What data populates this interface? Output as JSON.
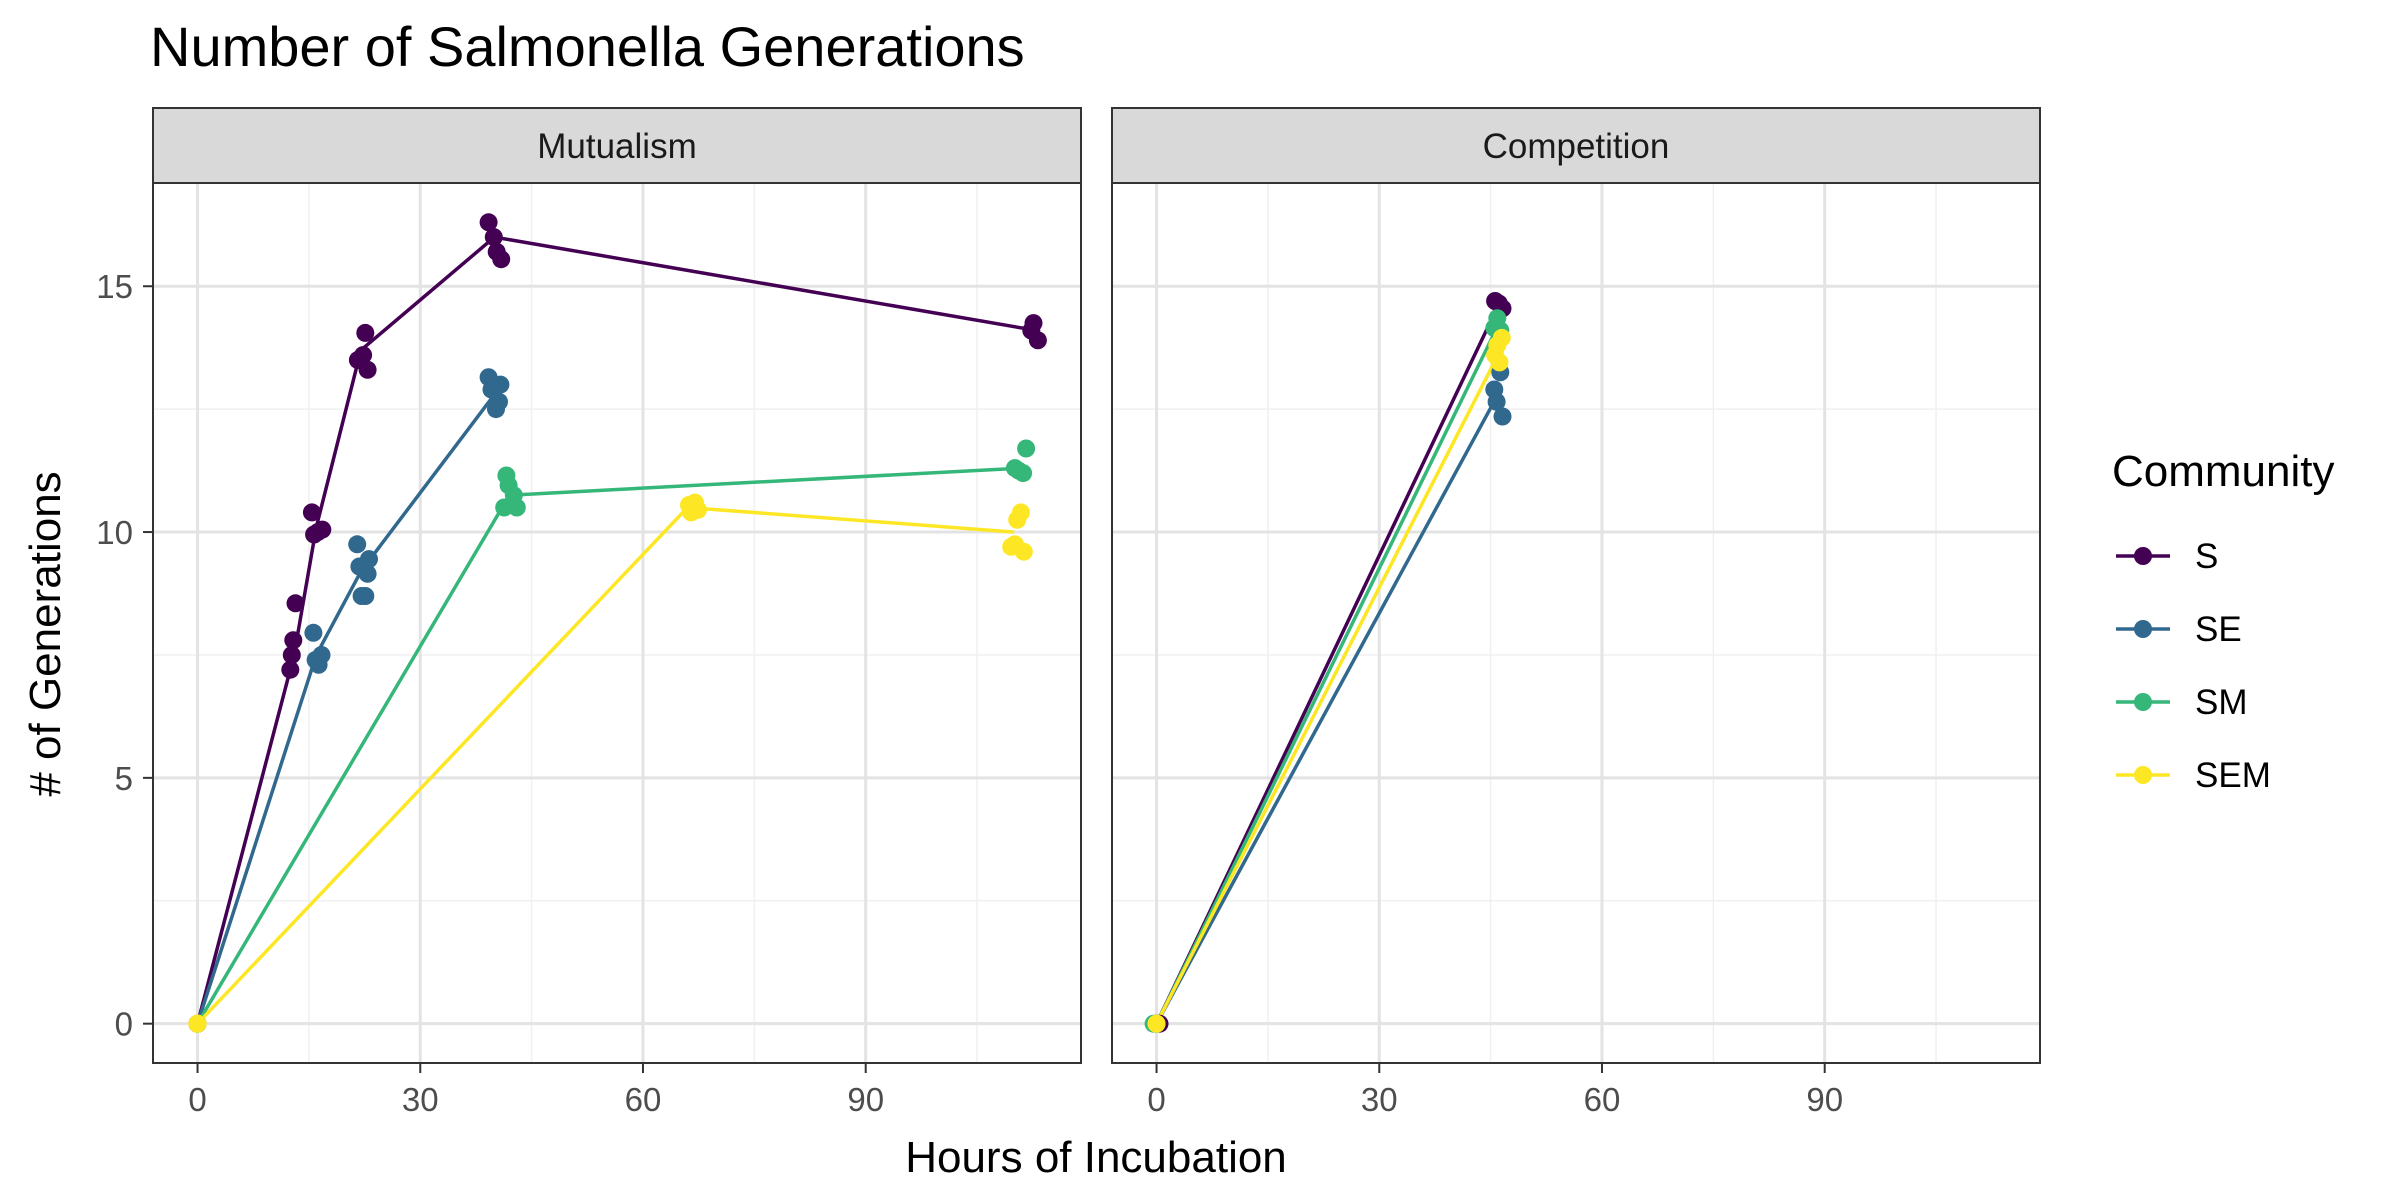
{
  "chart_data": {
    "type": "line",
    "title": "Number of Salmonella Generations",
    "xlabel": "Hours of Incubation",
    "ylabel": "# of Generations",
    "xlim": [
      -6,
      119
    ],
    "ylim": [
      -0.8,
      17.1
    ],
    "x_ticks": [
      0,
      30,
      60,
      90
    ],
    "y_ticks": [
      0,
      5,
      10,
      15
    ],
    "grid": true,
    "legend": {
      "title": "Community",
      "position": "right"
    },
    "series_styles": [
      {
        "name": "S",
        "color": "#440154"
      },
      {
        "name": "SE",
        "color": "#31688E"
      },
      {
        "name": "SM",
        "color": "#35B779"
      },
      {
        "name": "SEM",
        "color": "#FDE725"
      }
    ],
    "facets": [
      {
        "label": "Mutualism",
        "series": [
          {
            "name": "S",
            "line": [
              [
                0,
                0
              ],
              [
                13,
                7.5
              ],
              [
                16,
                10.1
              ],
              [
                22,
                13.7
              ],
              [
                40,
                16.0
              ],
              [
                113,
                14.1
              ]
            ],
            "points": [
              [
                0,
                0
              ],
              [
                0,
                0
              ],
              [
                0,
                0
              ],
              [
                0,
                0
              ],
              [
                12.5,
                7.2
              ],
              [
                12.7,
                7.5
              ],
              [
                12.9,
                7.8
              ],
              [
                13.2,
                8.55
              ],
              [
                15.4,
                10.4
              ],
              [
                15.7,
                9.95
              ],
              [
                16.2,
                10.0
              ],
              [
                16.8,
                10.05
              ],
              [
                21.6,
                13.5
              ],
              [
                22.3,
                13.6
              ],
              [
                22.6,
                14.05
              ],
              [
                22.9,
                13.3
              ],
              [
                39.2,
                16.3
              ],
              [
                39.9,
                16.0
              ],
              [
                40.3,
                15.7
              ],
              [
                40.9,
                15.55
              ],
              [
                112.3,
                14.1
              ],
              [
                112.6,
                14.25
              ],
              [
                113.2,
                13.9
              ]
            ]
          },
          {
            "name": "SE",
            "line": [
              [
                0,
                0
              ],
              [
                16,
                7.5
              ],
              [
                22,
                9.2
              ],
              [
                40,
                12.8
              ]
            ],
            "points": [
              [
                0,
                0
              ],
              [
                0,
                0
              ],
              [
                0,
                0
              ],
              [
                0,
                0
              ],
              [
                15.6,
                7.95
              ],
              [
                15.9,
                7.4
              ],
              [
                16.3,
                7.3
              ],
              [
                16.7,
                7.5
              ],
              [
                21.5,
                9.75
              ],
              [
                21.8,
                9.3
              ],
              [
                22.1,
                8.7
              ],
              [
                22.6,
                8.7
              ],
              [
                22.9,
                9.15
              ],
              [
                23.1,
                9.45
              ],
              [
                39.2,
                13.15
              ],
              [
                39.6,
                12.9
              ],
              [
                40.2,
                12.5
              ],
              [
                40.6,
                12.65
              ],
              [
                40.8,
                13.0
              ]
            ]
          },
          {
            "name": "SM",
            "line": [
              [
                0,
                0
              ],
              [
                42,
                10.75
              ],
              [
                111,
                11.3
              ]
            ],
            "points": [
              [
                0,
                0
              ],
              [
                0,
                0
              ],
              [
                0,
                0
              ],
              [
                0,
                0
              ],
              [
                41.3,
                10.5
              ],
              [
                41.6,
                11.15
              ],
              [
                41.9,
                10.95
              ],
              [
                42.6,
                10.75
              ],
              [
                43.0,
                10.5
              ],
              [
                110.1,
                11.3
              ],
              [
                110.6,
                11.25
              ],
              [
                111.2,
                11.2
              ],
              [
                111.6,
                11.7
              ]
            ]
          },
          {
            "name": "SEM",
            "line": [
              [
                0,
                0
              ],
              [
                66,
                10.5
              ],
              [
                110,
                10.0
              ]
            ],
            "points": [
              [
                0,
                0
              ],
              [
                0,
                0
              ],
              [
                0,
                0
              ],
              [
                0,
                0
              ],
              [
                66.2,
                10.55
              ],
              [
                66.5,
                10.4
              ],
              [
                67.0,
                10.6
              ],
              [
                67.4,
                10.45
              ],
              [
                109.6,
                9.7
              ],
              [
                110.1,
                9.75
              ],
              [
                110.4,
                10.25
              ],
              [
                110.9,
                10.4
              ],
              [
                111.3,
                9.6
              ]
            ]
          }
        ]
      },
      {
        "label": "Competition",
        "series": [
          {
            "name": "S",
            "line": [
              [
                0,
                0
              ],
              [
                46,
                14.6
              ]
            ],
            "points": [
              [
                0,
                0
              ],
              [
                0.4,
                0
              ],
              [
                45.6,
                14.7
              ],
              [
                46.1,
                14.65
              ],
              [
                46.6,
                14.55
              ]
            ]
          },
          {
            "name": "SE",
            "line": [
              [
                0,
                0
              ],
              [
                46,
                12.8
              ]
            ],
            "points": [
              [
                0,
                0
              ],
              [
                0,
                0
              ],
              [
                45.5,
                12.9
              ],
              [
                45.8,
                12.65
              ],
              [
                46.3,
                13.25
              ],
              [
                46.6,
                12.35
              ]
            ]
          },
          {
            "name": "SM",
            "line": [
              [
                0,
                0
              ],
              [
                46,
                14.2
              ]
            ],
            "points": [
              [
                0,
                0
              ],
              [
                -0.4,
                0
              ],
              [
                45.5,
                14.15
              ],
              [
                45.9,
                14.35
              ],
              [
                46.3,
                14.1
              ]
            ]
          },
          {
            "name": "SEM",
            "line": [
              [
                0,
                0
              ],
              [
                46,
                13.6
              ]
            ],
            "points": [
              [
                0,
                0
              ],
              [
                0,
                0
              ],
              [
                45.6,
                13.6
              ],
              [
                45.9,
                13.8
              ],
              [
                46.2,
                13.45
              ],
              [
                46.5,
                13.95
              ]
            ]
          }
        ]
      }
    ]
  }
}
